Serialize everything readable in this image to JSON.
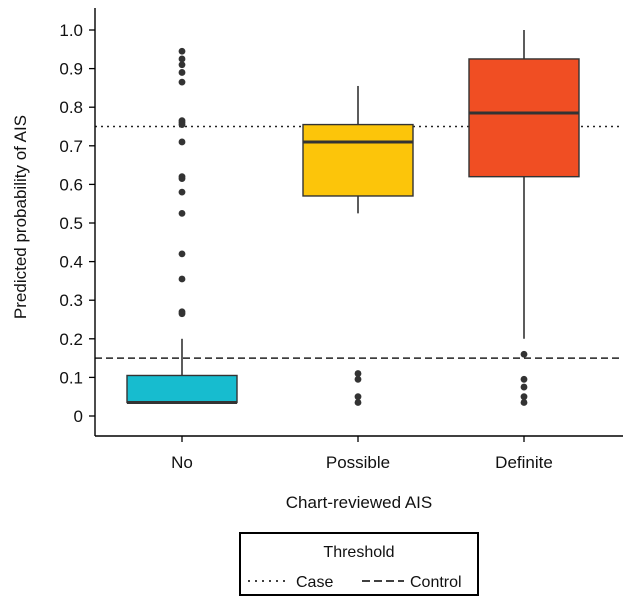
{
  "chart_data": {
    "type": "boxplot",
    "xlabel": "Chart-reviewed AIS",
    "ylabel": "Predicted probability of AIS",
    "ylim": [
      -0.03,
      1.04
    ],
    "yticks": [
      {
        "v": 0,
        "label": "0"
      },
      {
        "v": 0.1,
        "label": "0.1"
      },
      {
        "v": 0.2,
        "label": "0.2"
      },
      {
        "v": 0.3,
        "label": "0.3"
      },
      {
        "v": 0.4,
        "label": "0.4"
      },
      {
        "v": 0.5,
        "label": "0.5"
      },
      {
        "v": 0.6,
        "label": "0.6"
      },
      {
        "v": 0.7,
        "label": "0.7"
      },
      {
        "v": 0.8,
        "label": "0.8"
      },
      {
        "v": 0.9,
        "label": "0.9"
      },
      {
        "v": 1.0,
        "label": "1.0"
      }
    ],
    "categories": [
      "No",
      "Possible",
      "Definite"
    ],
    "boxes": [
      {
        "category": "No",
        "color": "#17bccf",
        "whisker_low": 0.035,
        "q1": 0.035,
        "median": 0.035,
        "q3": 0.105,
        "whisker_high": 0.2,
        "outliers": [
          0.945,
          0.925,
          0.91,
          0.89,
          0.865,
          0.765,
          0.76,
          0.755,
          0.71,
          0.62,
          0.615,
          0.58,
          0.525,
          0.42,
          0.355,
          0.27,
          0.265
        ]
      },
      {
        "category": "Possible",
        "color": "#fcc50a",
        "whisker_low": 0.525,
        "q1": 0.57,
        "median": 0.71,
        "q3": 0.755,
        "whisker_high": 0.855,
        "outliers": [
          0.11,
          0.095,
          0.05,
          0.035
        ]
      },
      {
        "category": "Definite",
        "color": "#f04e23",
        "whisker_low": 0.2,
        "q1": 0.62,
        "median": 0.785,
        "q3": 0.925,
        "whisker_high": 1.0,
        "outliers": [
          0.16,
          0.095,
          0.075,
          0.05,
          0.035
        ]
      }
    ],
    "thresholds": [
      {
        "name": "Case",
        "value": 0.75,
        "style": "dotted"
      },
      {
        "name": "Control",
        "value": 0.15,
        "style": "dashed"
      }
    ],
    "legend": {
      "title": "Threshold",
      "position": "bottom"
    },
    "grid": false,
    "colors": {
      "outline": "#333333",
      "point": "#333333"
    }
  }
}
